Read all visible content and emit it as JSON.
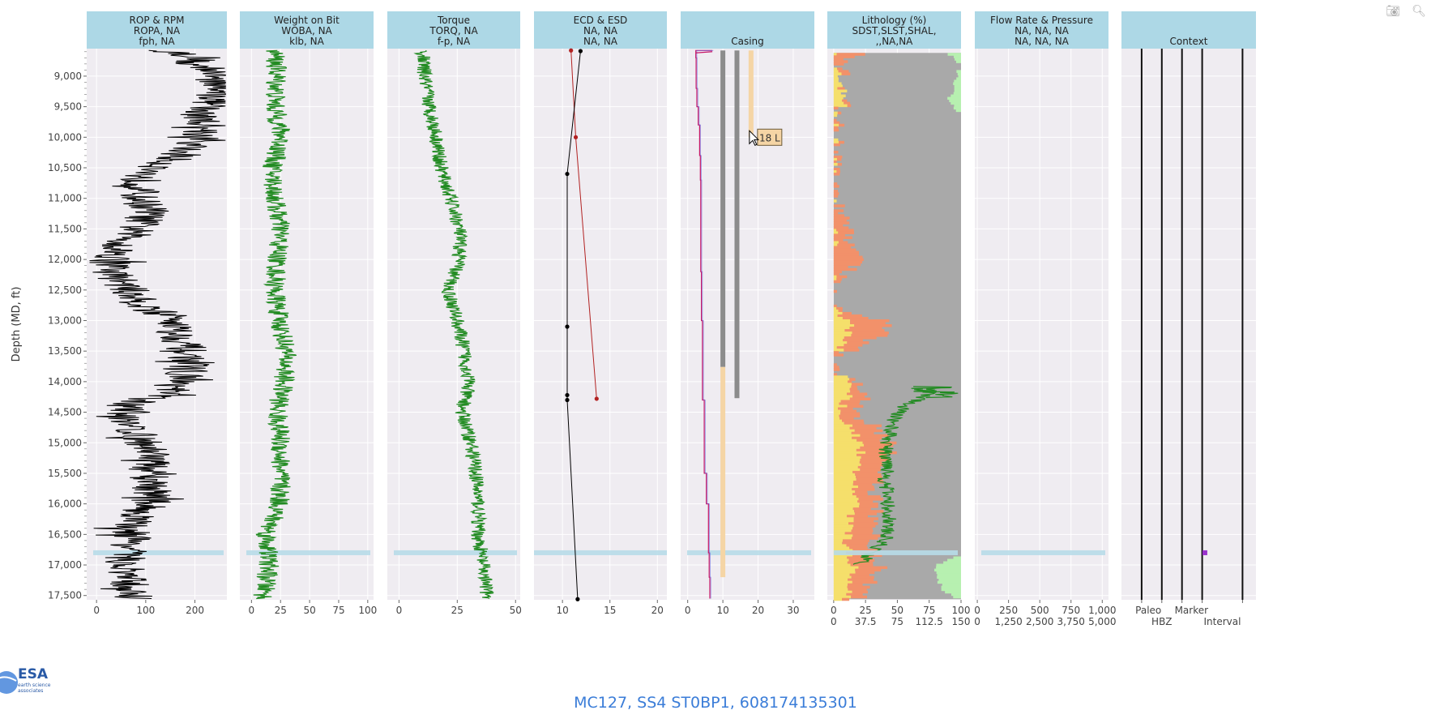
{
  "page": {
    "footer_title": "MC127, SS4 ST0BP1, 608174135301",
    "logo_text": "ESA",
    "logo_sub": "earth science associates",
    "y_axis_title": "Depth (MD, ft)",
    "hover_label": "18 L"
  },
  "modebar": {
    "camera_icon": "camera-icon",
    "zoom_icon": "zoom-icon"
  },
  "colors": {
    "header_bg": "#add8e6",
    "panel_bg": "#efecf1",
    "grid": "#ffffff",
    "rop": "#000000",
    "green": "#228b22",
    "ecd": "#b22222",
    "esd": "#000000",
    "casing_grey": "#8c8c8c",
    "casing_tan": "#f5d5a5",
    "mud": "#c71565",
    "mud2": "#6a6ae0",
    "highlight": "#b7dbe8",
    "shale": "#a9a9a9",
    "sand": "#f5df6b",
    "silt": "#f2916a",
    "lightgreen": "#b7f0b0",
    "marker": "#9932cc",
    "footer": "#3b7dd8"
  },
  "chart_data": {
    "type": "well-log-tracks",
    "ylabel": "Depth (MD, ft)",
    "ylim": [
      8550,
      17570
    ],
    "y_reversed": true,
    "y_ticks": [
      9000,
      9500,
      10000,
      10500,
      11000,
      11500,
      12000,
      12500,
      13000,
      13500,
      14000,
      14500,
      15000,
      15500,
      16000,
      16500,
      17000,
      17500
    ],
    "y_tick_labels": [
      "9,000",
      "9,500",
      "10,000",
      "10,500",
      "11,000",
      "11,500",
      "12,000",
      "12,500",
      "13,000",
      "13,500",
      "14,000",
      "14,500",
      "15,000",
      "15,500",
      "16,000",
      "16,500",
      "17,000",
      "17,500"
    ],
    "highlight_depth": 16800,
    "tracks": [
      {
        "name": "rop",
        "header": [
          "ROP & RPM",
          "ROPA, NA",
          "fph, NA"
        ],
        "xlim": [
          -20,
          265
        ],
        "x_ticks": [
          0,
          100,
          200
        ],
        "x_tick_labels": [
          "0",
          "100",
          "200"
        ],
        "series": [
          {
            "kind": "line",
            "color": "#000000",
            "depth": [
              8580,
              8700,
              8800,
              8900,
              9000,
              9200,
              9400,
              9600,
              9800,
              10000,
              10200,
              10400,
              10500,
              10600,
              10800,
              11000,
              11200,
              11400,
              11600,
              11800,
              12000,
              12200,
              12400,
              12600,
              12800,
              12900,
              13000,
              13200,
              13400,
              13600,
              13800,
              14000,
              14200,
              14300,
              14400,
              14600,
              14800,
              15000,
              15200,
              15400,
              15600,
              15800,
              16000,
              16200,
              16400,
              16600,
              16800,
              17000,
              17200,
              17400,
              17550
            ],
            "values": [
              140,
              215,
              185,
              240,
              245,
              250,
              240,
              205,
              225,
              210,
              180,
              145,
              120,
              95,
              90,
              85,
              110,
              90,
              70,
              45,
              35,
              30,
              55,
              75,
              100,
              140,
              165,
              160,
              180,
              185,
              190,
              165,
              140,
              95,
              55,
              65,
              75,
              95,
              120,
              105,
              110,
              115,
              110,
              80,
              70,
              75,
              60,
              55,
              60,
              70,
              75
            ],
            "jitter": 42
          }
        ]
      },
      {
        "name": "wob",
        "header": [
          "Weight on Bit",
          "WOBA, NA",
          "klb, NA"
        ],
        "xlim": [
          -10,
          105
        ],
        "x_ticks": [
          0,
          25,
          50,
          75,
          100
        ],
        "x_tick_labels": [
          "0",
          "25",
          "50",
          "75",
          "100"
        ],
        "series": [
          {
            "kind": "line",
            "color": "#228b22",
            "depth": [
              8580,
              9000,
              9500,
              10000,
              10500,
              11000,
              11500,
              12000,
              12500,
              13000,
              13500,
              14000,
              14500,
              15000,
              15500,
              16000,
              16500,
              17000,
              17550
            ],
            "values": [
              20,
              22,
              20,
              26,
              18,
              20,
              25,
              22,
              20,
              24,
              30,
              28,
              22,
              25,
              25,
              24,
              13,
              15,
              10
            ],
            "jitter": 9
          }
        ]
      },
      {
        "name": "torque",
        "header": [
          "Torque",
          "TORQ, NA",
          "f-p, NA"
        ],
        "xlim": [
          -5,
          52
        ],
        "x_ticks": [
          0,
          25,
          50
        ],
        "x_tick_labels": [
          "0",
          "25",
          "50"
        ],
        "series": [
          {
            "kind": "line",
            "color": "#228b22",
            "depth": [
              8580,
              9000,
              9500,
              10000,
              10500,
              11000,
              11500,
              12000,
              12500,
              13000,
              13500,
              14000,
              14500,
              15000,
              15500,
              16000,
              16500,
              17000,
              17550
            ],
            "values": [
              10,
              11,
              13,
              16,
              18,
              22,
              26,
              26,
              21,
              25,
              28,
              30,
              27,
              31,
              33,
              34,
              34,
              36,
              38
            ],
            "jitter": 3.2
          }
        ]
      },
      {
        "name": "ecd",
        "header": [
          "ECD & ESD",
          "NA, NA",
          "NA, NA"
        ],
        "xlim": [
          7,
          21
        ],
        "x_ticks": [
          10,
          15,
          20
        ],
        "x_tick_labels": [
          "10",
          "15",
          "20"
        ],
        "series": [
          {
            "kind": "line-markers",
            "name": "ECD",
            "color": "#b22222",
            "depth": [
              8580,
              10000,
              14280
            ],
            "values": [
              10.9,
              11.4,
              13.6
            ]
          },
          {
            "kind": "line-markers",
            "name": "ESD",
            "color": "#000000",
            "depth": [
              8590,
              10600,
              13100,
              14220,
              14300,
              17560
            ],
            "values": [
              11.9,
              10.5,
              10.5,
              10.5,
              10.5,
              11.6
            ]
          }
        ]
      },
      {
        "name": "casing",
        "header": [
          "",
          "",
          "Casing"
        ],
        "xlim": [
          -2,
          36
        ],
        "x_ticks": [
          0,
          10,
          20,
          30
        ],
        "x_tick_labels": [
          "0",
          "10",
          "20",
          "30"
        ],
        "bars": [
          {
            "x": 10,
            "top": 8580,
            "bottom": 13760,
            "color": "#8c8c8c"
          },
          {
            "x": 10,
            "top": 13760,
            "bottom": 17200,
            "color": "#f5d5a5"
          },
          {
            "x": 14,
            "top": 8580,
            "bottom": 14270,
            "color": "#8c8c8c"
          },
          {
            "x": 18,
            "top": 8580,
            "bottom": 10000,
            "color": "#f5d5a5"
          }
        ],
        "series": [
          {
            "kind": "step",
            "color": "#c71565",
            "depth": [
              8580,
              8700,
              9200,
              9500,
              9800,
              10300,
              10700,
              12200,
              13000,
              14300,
              15500,
              16000,
              16800,
              17200,
              17550
            ],
            "values": [
              7,
              2.3,
              2.4,
              2.6,
              3,
              3.4,
              3.6,
              3.7,
              3.9,
              4.2,
              4.7,
              5.3,
              5.9,
              6.1,
              6.3
            ]
          }
        ],
        "hover": {
          "depth": 10000,
          "x": 18
        }
      },
      {
        "name": "lithology",
        "header": [
          "Lithology (%)",
          "SDST,SLST,SHAL,",
          ",,NA,NA"
        ],
        "xlim": [
          -5,
          100
        ],
        "x_ticks": [
          0,
          25,
          50,
          75,
          100
        ],
        "x_tick_labels": [
          "0",
          "25",
          "50",
          "75",
          "100"
        ],
        "x2_tick_labels": [
          "0",
          "37.5",
          "75",
          "112.5",
          "150"
        ],
        "depth": [
          8580,
          8800,
          9400,
          9600,
          10000,
          10500,
          11000,
          11200,
          11400,
          11600,
          11800,
          12000,
          12200,
          12400,
          12800,
          13000,
          13200,
          13600,
          13800,
          14000,
          14200,
          14400,
          14600,
          14800,
          15000,
          15200,
          15400,
          15600,
          15800,
          16000,
          16200,
          16400,
          16600,
          16800,
          17000,
          17200,
          17400,
          17550
        ],
        "sand": [
          0,
          0,
          10,
          0,
          0,
          0,
          0,
          0,
          0,
          0,
          0,
          0,
          0,
          0,
          0,
          14,
          12,
          0,
          0,
          16,
          12,
          6,
          8,
          16,
          20,
          22,
          18,
          20,
          14,
          18,
          12,
          14,
          10,
          12,
          16,
          14,
          12,
          10
        ],
        "silt": [
          20,
          6,
          0,
          0,
          0,
          4,
          0,
          8,
          12,
          10,
          14,
          22,
          10,
          0,
          0,
          30,
          26,
          0,
          0,
          8,
          12,
          16,
          14,
          22,
          22,
          20,
          18,
          20,
          14,
          18,
          20,
          18,
          16,
          20,
          22,
          18,
          14,
          10
        ],
        "lightgreen": [
          12,
          0,
          10,
          0,
          0,
          0,
          0,
          0,
          0,
          0,
          0,
          0,
          0,
          0,
          0,
          0,
          0,
          0,
          0,
          0,
          0,
          0,
          0,
          0,
          0,
          0,
          0,
          0,
          0,
          0,
          0,
          0,
          0,
          0,
          20,
          18,
          14,
          0
        ],
        "curve": {
          "color": "#228b22",
          "depth": [
            14100,
            14250,
            14400,
            14600,
            14800,
            15000,
            15200,
            15400,
            15600,
            15800,
            16000,
            16200,
            16400,
            16600,
            16800,
            17000
          ],
          "values": [
            80,
            70,
            55,
            48,
            45,
            42,
            40,
            44,
            40,
            42,
            42,
            44,
            42,
            40,
            30,
            20
          ],
          "jitter": 6,
          "spike_depth": 14150,
          "spike_value": 100
        }
      },
      {
        "name": "flow",
        "header": [
          "Flow Rate & Pressure",
          "NA, NA, NA",
          "NA, NA, NA"
        ],
        "xlim": [
          -20,
          1050
        ],
        "x_ticks": [
          0,
          250,
          500,
          750,
          1000
        ],
        "x_tick_labels": [
          "0",
          "250",
          "500",
          "750",
          "1,000"
        ],
        "x2_tick_labels": [
          "0",
          "1,250",
          "2,500",
          "3,750",
          "5,000"
        ]
      },
      {
        "name": "context",
        "header": [
          "",
          "",
          "Context"
        ],
        "context_lines": [
          0.15,
          0.3,
          0.45,
          0.6,
          0.9
        ],
        "bottom_labels_row1": [
          "Paleo",
          "Marker"
        ],
        "bottom_labels_row2": [
          "HBZ",
          "Interval"
        ],
        "marker": {
          "depth": 16800,
          "x": 0.62,
          "color": "#9932cc"
        }
      }
    ]
  }
}
